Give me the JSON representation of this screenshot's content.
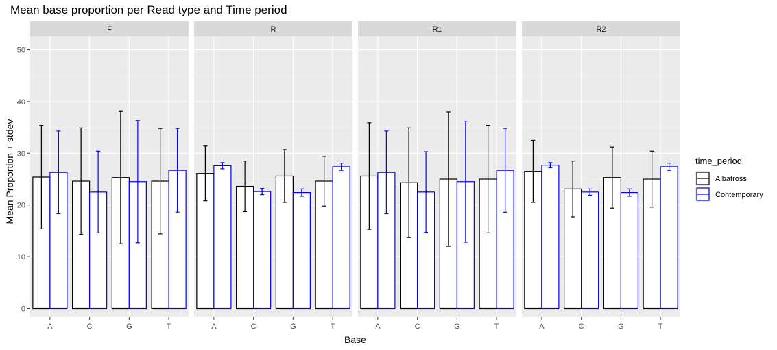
{
  "chart_data": {
    "type": "bar",
    "title": "Mean base proportion per Read type and Time period",
    "xlabel": "Base",
    "ylabel": "Mean Proportion + stdev",
    "ylim": [
      0,
      52
    ],
    "yticks": [
      0,
      10,
      20,
      30,
      40,
      50
    ],
    "grid": true,
    "legend": {
      "title": "time_period",
      "position": "right"
    },
    "categories": [
      "A",
      "C",
      "G",
      "T"
    ],
    "series_colors": {
      "Albatross": "#000000",
      "Contemporary": "#0000ff"
    },
    "panel_background": "#ebebeb",
    "strip_background": "#d9d9d9",
    "panels": [
      {
        "strip": "F",
        "series": [
          {
            "name": "Albatross",
            "values": [
              25.4,
              24.6,
              25.3,
              24.6
            ],
            "errors": [
              10.0,
              10.3,
              12.8,
              10.2
            ]
          },
          {
            "name": "Contemporary",
            "values": [
              26.3,
              22.5,
              24.5,
              26.7
            ],
            "errors": [
              8.0,
              7.9,
              11.8,
              8.1
            ]
          }
        ]
      },
      {
        "strip": "R",
        "series": [
          {
            "name": "Albatross",
            "values": [
              26.1,
              23.6,
              25.6,
              24.6
            ],
            "errors": [
              5.3,
              4.9,
              5.1,
              4.8
            ]
          },
          {
            "name": "Contemporary",
            "values": [
              27.6,
              22.6,
              22.4,
              27.4
            ],
            "errors": [
              0.6,
              0.6,
              0.7,
              0.7
            ]
          }
        ]
      },
      {
        "strip": "R1",
        "series": [
          {
            "name": "Albatross",
            "values": [
              25.6,
              24.3,
              25.0,
              25.0
            ],
            "errors": [
              10.3,
              10.6,
              13.0,
              10.4
            ]
          },
          {
            "name": "Contemporary",
            "values": [
              26.3,
              22.5,
              24.5,
              26.7
            ],
            "errors": [
              8.0,
              7.8,
              11.7,
              8.1
            ]
          }
        ]
      },
      {
        "strip": "R2",
        "series": [
          {
            "name": "Albatross",
            "values": [
              26.5,
              23.1,
              25.3,
              25.0
            ],
            "errors": [
              6.0,
              5.4,
              5.9,
              5.4
            ]
          },
          {
            "name": "Contemporary",
            "values": [
              27.7,
              22.5,
              22.4,
              27.4
            ],
            "errors": [
              0.5,
              0.6,
              0.7,
              0.7
            ]
          }
        ]
      }
    ]
  }
}
